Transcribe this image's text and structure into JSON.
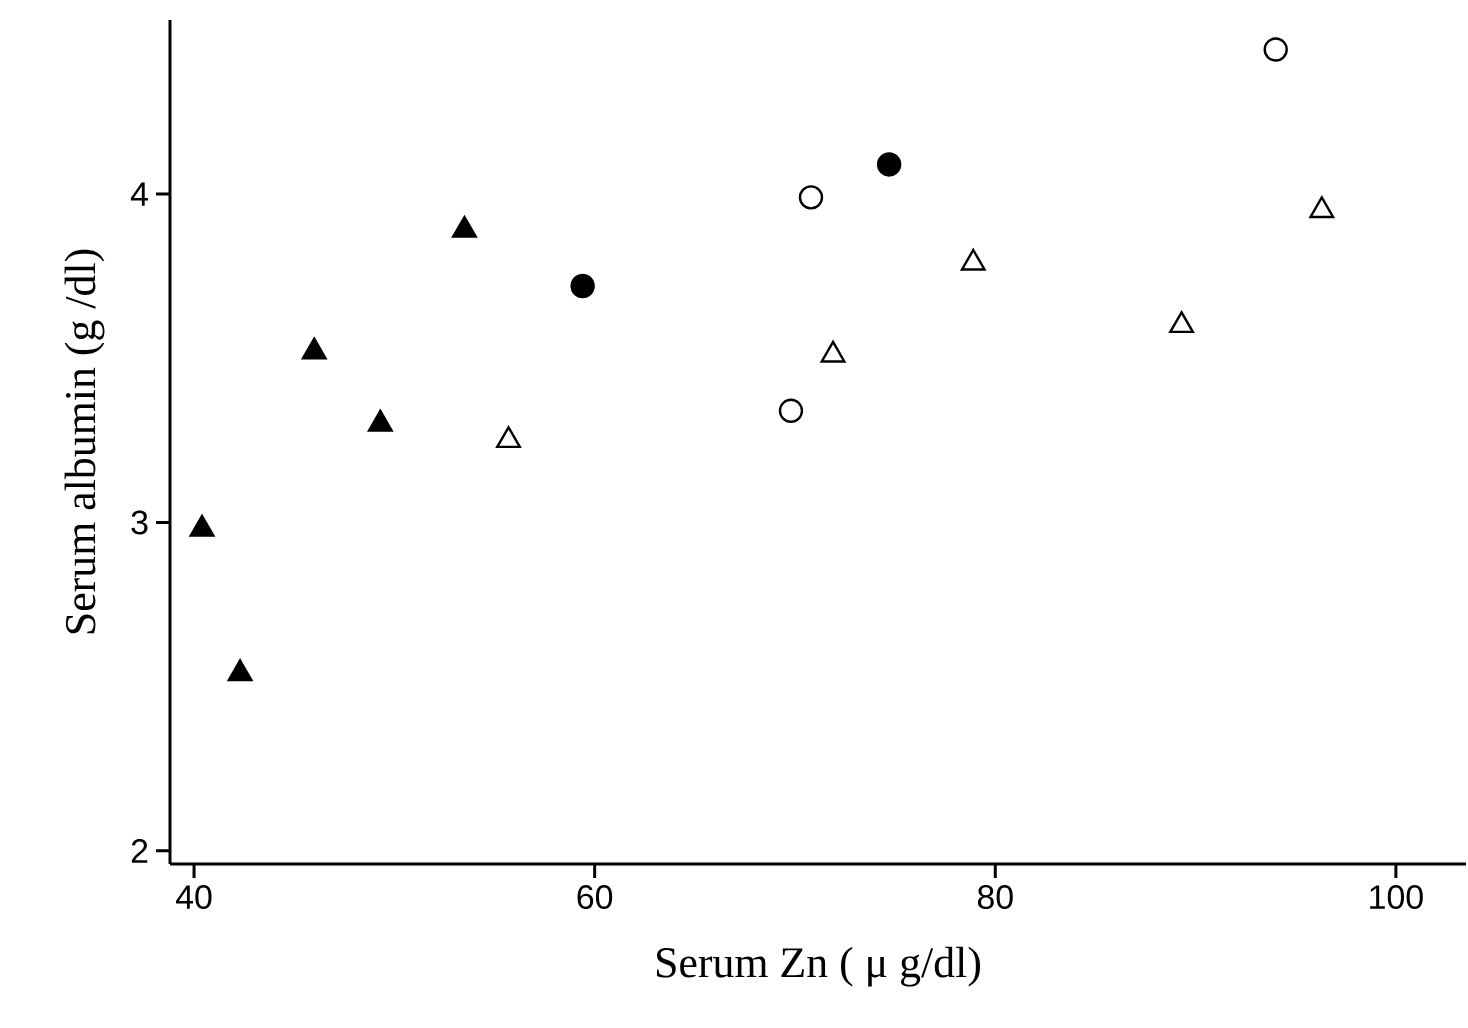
{
  "chart_data": {
    "type": "scatter",
    "xlabel": "Serum Zn ( μ g/dl)",
    "ylabel": "Serum albumin (g /dl)",
    "xlim": [
      38.8,
      103.5
    ],
    "ylim": [
      1.96,
      4.53
    ],
    "xticks": [
      40,
      60,
      80,
      100
    ],
    "yticks": [
      2,
      3,
      4
    ],
    "series": [
      {
        "color": "#000000",
        "marker": "triangle",
        "x": [
          40.4,
          42.3,
          46.0,
          49.3,
          53.5
        ],
        "values": [
          2.98,
          2.54,
          3.52,
          3.3,
          3.89
        ]
      },
      {
        "color": "#000000",
        "marker": "triangle",
        "x": [
          55.7,
          71.9,
          78.9,
          89.3,
          96.3
        ],
        "values": [
          3.25,
          3.51,
          3.79,
          3.6,
          3.95
        ]
      },
      {
        "color": "#000000",
        "marker": "circle",
        "x": [
          59.4,
          74.7
        ],
        "values": [
          3.72,
          4.09
        ]
      },
      {
        "color": "#000000",
        "marker": "circle",
        "x": [
          69.8,
          70.8,
          94.0
        ],
        "values": [
          3.34,
          3.99,
          4.44
        ]
      }
    ]
  }
}
